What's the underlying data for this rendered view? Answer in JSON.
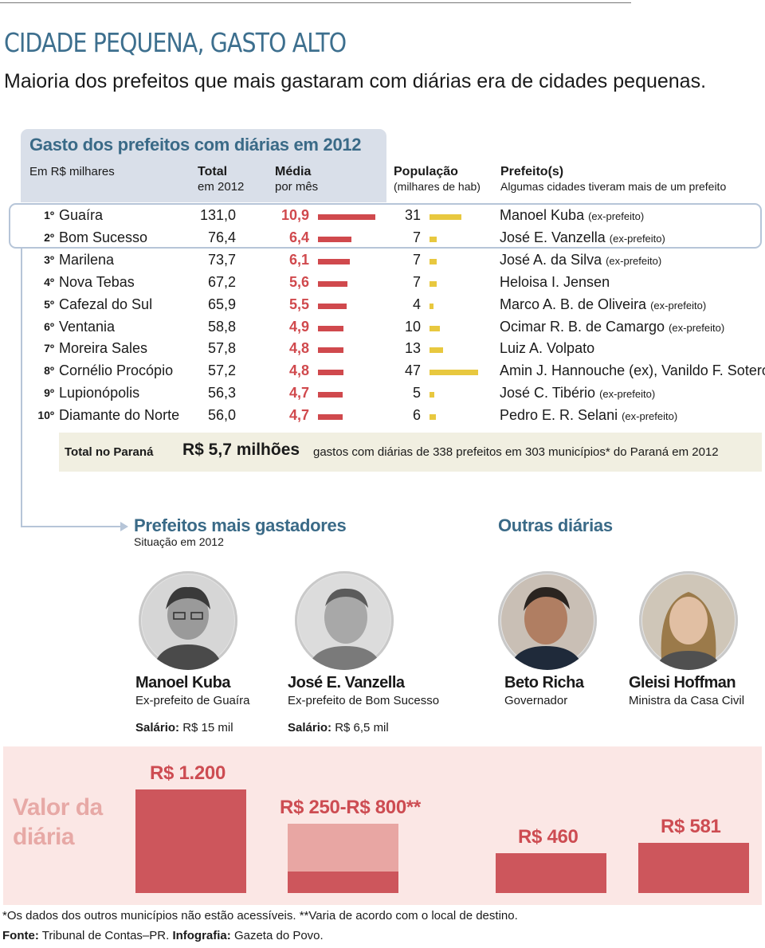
{
  "headline": "CIDADE PEQUENA, GASTO ALTO",
  "subheadline": "Maioria dos prefeitos que mais gastaram com diárias era de cidades pequenas.",
  "table": {
    "title": "Gasto dos prefeitos com diárias em 2012",
    "unit_label": "Em R$ milhares",
    "col_total": "Total",
    "col_total_sub": "em 2012",
    "col_media": "Média",
    "col_media_sub": "por mês",
    "col_pop": "População",
    "col_pop_sub": "(milhares de hab)",
    "col_mayor": "Prefeito(s)",
    "col_mayor_sub": "Algumas cidades tiveram mais de um prefeito"
  },
  "chart_data": {
    "type": "table",
    "title": "Gasto dos prefeitos com diárias em 2012",
    "rows": [
      {
        "rank": "1º",
        "city": "Guaíra",
        "total": "131,0",
        "media": "10,9",
        "media_value": 10.9,
        "pop": "31",
        "pop_value": 31,
        "mayor": "Manoel Kuba",
        "mayor_note": "(ex-prefeito)"
      },
      {
        "rank": "2º",
        "city": "Bom Sucesso",
        "total": "76,4",
        "media": "6,4",
        "media_value": 6.4,
        "pop": "7",
        "pop_value": 7,
        "mayor": "José E. Vanzella",
        "mayor_note": "(ex-prefeito)"
      },
      {
        "rank": "3º",
        "city": "Marilena",
        "total": "73,7",
        "media": "6,1",
        "media_value": 6.1,
        "pop": "7",
        "pop_value": 7,
        "mayor": "José A. da Silva",
        "mayor_note": "(ex-prefeito)"
      },
      {
        "rank": "4º",
        "city": "Nova Tebas",
        "total": "67,2",
        "media": "5,6",
        "media_value": 5.6,
        "pop": "7",
        "pop_value": 7,
        "mayor": "Heloisa I. Jensen",
        "mayor_note": ""
      },
      {
        "rank": "5º",
        "city": "Cafezal do Sul",
        "total": "65,9",
        "media": "5,5",
        "media_value": 5.5,
        "pop": "4",
        "pop_value": 4,
        "mayor": "Marco A. B. de Oliveira",
        "mayor_note": "(ex-prefeito)"
      },
      {
        "rank": "6º",
        "city": "Ventania",
        "total": "58,8",
        "media": "4,9",
        "media_value": 4.9,
        "pop": "10",
        "pop_value": 10,
        "mayor": "Ocimar R. B. de Camargo",
        "mayor_note": "(ex-prefeito)"
      },
      {
        "rank": "7º",
        "city": "Moreira Sales",
        "total": "57,8",
        "media": "4,8",
        "media_value": 4.8,
        "pop": "13",
        "pop_value": 13,
        "mayor": "Luiz A. Volpato",
        "mayor_note": ""
      },
      {
        "rank": "8º",
        "city": "Cornélio Procópio",
        "total": "57,2",
        "media": "4,8",
        "media_value": 4.8,
        "pop": "47",
        "pop_value": 47,
        "mayor": "Amin J. Hannouche (ex), Vanildo F. Sotero (ex)",
        "mayor_note": ""
      },
      {
        "rank": "9º",
        "city": "Lupionópolis",
        "total": "56,3",
        "media": "4,7",
        "media_value": 4.7,
        "pop": "5",
        "pop_value": 5,
        "mayor": "José C. Tibério",
        "mayor_note": "(ex-prefeito)"
      },
      {
        "rank": "10º",
        "city": "Diamante do Norte",
        "total": "56,0",
        "media": "4,7",
        "media_value": 4.7,
        "pop": "6",
        "pop_value": 6,
        "mayor": "Pedro E. R. Selani",
        "mayor_note": "(ex-prefeito)"
      }
    ],
    "value_chart": {
      "type": "bar",
      "categories": [
        "Manoel Kuba",
        "José E. Vanzella",
        "Beto Richa",
        "Gleisi Hoffman"
      ],
      "values": [
        1200,
        800,
        460,
        581
      ],
      "range_min": [
        null,
        250,
        null,
        null
      ]
    }
  },
  "total_row": {
    "label": "Total no Paraná",
    "value": "R$ 5,7 milhões",
    "desc": "gastos com diárias de 338 prefeitos em 303 municípios* do Paraná em 2012"
  },
  "section_left": {
    "title": "Prefeitos mais gastadores",
    "subtitle": "Situação em 2012"
  },
  "section_right": {
    "title": "Outras diárias"
  },
  "people": [
    {
      "name": "Manoel Kuba",
      "role": "Ex-prefeito de Guaíra",
      "salary_label": "Salário:",
      "salary": "R$ 15 mil"
    },
    {
      "name": "José E. Vanzella",
      "role": "Ex-prefeito de Bom Sucesso",
      "salary_label": "Salário:",
      "salary": "R$ 6,5 mil"
    },
    {
      "name": "Beto Richa",
      "role": "Governador"
    },
    {
      "name": "Gleisi Hoffman",
      "role": "Ministra da Casa Civil"
    }
  ],
  "value_section": {
    "title_line1": "Valor da",
    "title_line2": "diária",
    "labels": [
      "R$ 1.200",
      "R$ 250-R$ 800**",
      "R$ 460",
      "R$ 581"
    ]
  },
  "footnote": "*Os dados dos outros municípios não estão acessíveis. **Varia de acordo com o local de destino.",
  "source_label": "Fonte:",
  "source": "Tribunal de Contas–PR.",
  "credit_label": "Infografia:",
  "credit": "Gazeta do Povo.",
  "colors": {
    "accent_blue": "#3a6a87",
    "red": "#d0494d",
    "yellow": "#e8c83f",
    "panel_pink": "#fbe7e5"
  }
}
